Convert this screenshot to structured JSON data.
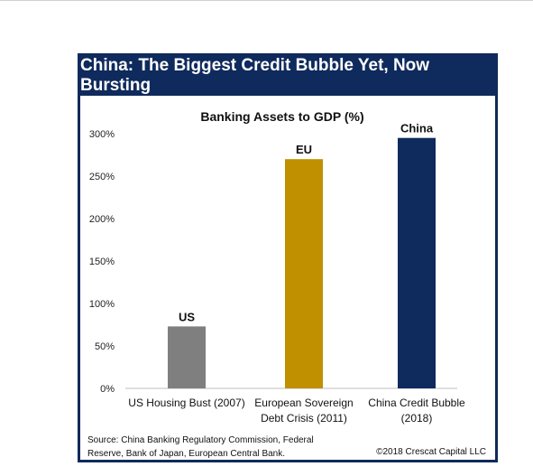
{
  "title": "China: The Biggest Credit Bubble Yet, Now Bursting",
  "chart_data": {
    "type": "bar",
    "title": "Banking Assets to GDP (%)",
    "categories": [
      "US Housing Bust (2007)",
      "European Sovereign Debt Crisis (2011)",
      "China Credit Bubble (2018)"
    ],
    "category_lines": [
      [
        "US Housing Bust (2007)"
      ],
      [
        "European Sovereign",
        "Debt Crisis (2011)"
      ],
      [
        "China Credit Bubble",
        "(2018)"
      ]
    ],
    "bar_labels": [
      "US",
      "EU",
      "China"
    ],
    "values": [
      73,
      270,
      295
    ],
    "colors": [
      "#7f7f7f",
      "#c09000",
      "#0f2a5c"
    ],
    "ylim": [
      0,
      300
    ],
    "yticks": [
      "0%",
      "50%",
      "100%",
      "150%",
      "200%",
      "250%",
      "300%"
    ],
    "grid": false,
    "legend": "none"
  },
  "footer": {
    "source": "Source: China Banking Regulatory Commission, Federal Reserve, Bank of Japan, European Central Bank.",
    "copyright": "©2018 Crescat Capital LLC"
  }
}
